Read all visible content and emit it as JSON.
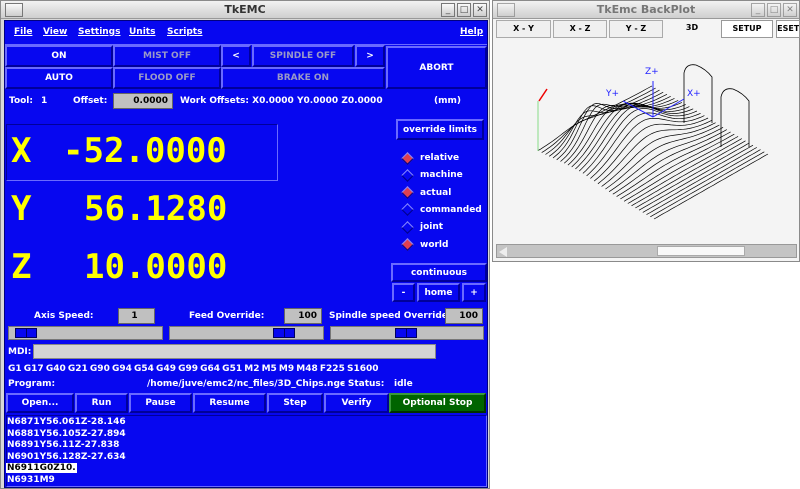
{
  "main_window": {
    "title": "TkEMC",
    "menu": [
      "File",
      "View",
      "Settings",
      "Units",
      "Scripts"
    ],
    "help": "Help",
    "buttons": {
      "on": "ON",
      "mist": "MIST OFF",
      "spindle_dec": "<",
      "spindle": "SPINDLE OFF",
      "spindle_inc": ">",
      "abort": "ABORT",
      "auto": "AUTO",
      "flood": "FLOOD OFF",
      "brake": "BRAKE ON"
    },
    "tool_label": "Tool:",
    "tool_value": "1",
    "offset_label": "Offset:",
    "offset_value": "0.0000",
    "work_offsets": "Work Offsets:  X0.0000 Y0.0000 Z0.0000",
    "units": "(mm)",
    "dro": [
      {
        "axis": "X",
        "value": "-52.0000"
      },
      {
        "axis": "Y",
        "value": "56.1280"
      },
      {
        "axis": "Z",
        "value": "10.0000"
      }
    ],
    "override_limits": "override limits",
    "coord_modes": [
      {
        "label": "relative",
        "checked": true
      },
      {
        "label": "machine",
        "checked": false
      },
      {
        "label": "actual",
        "checked": true
      },
      {
        "label": "commanded",
        "checked": false
      },
      {
        "label": "joint",
        "checked": false
      },
      {
        "label": "world",
        "checked": true
      }
    ],
    "jog_mode": "continuous",
    "jog_minus": "-",
    "home": "home",
    "jog_plus": "+",
    "axis_speed_label": "Axis Speed:",
    "axis_speed": "1",
    "feed_override_label": "Feed Override:",
    "feed_override": "100",
    "spindle_override_label": "Spindle speed Override:",
    "spindle_override": "100",
    "sliders": {
      "axis_speed": 0.05,
      "feed_override": 0.8,
      "spindle_override": 0.5
    },
    "mdi_label": "MDI:",
    "mdi_value": "",
    "active_codes": "G1  G17  G40  G21  G90  G94  G54  G49  G99  G64  G51  M2  M5  M9  M48  F225  S1600",
    "program_label": "Program:",
    "program_path": "/home/juve/emc2/nc_files/3D_Chips.ngc",
    "status_label": "-   Status:",
    "status": "idle",
    "program_buttons": [
      "Open...",
      "Run",
      "Pause",
      "Resume",
      "Step",
      "Verify",
      "Optional Stop"
    ],
    "code_lines": [
      "N6871Y56.061Z-28.146",
      "N6881Y56.105Z-27.894",
      "N6891Y56.11Z-27.838",
      "N6901Y56.128Z-27.634",
      "N6911G0Z10.",
      "N6931M9"
    ],
    "current_line_index": 4
  },
  "backplot": {
    "title": "TkEmc BackPlot",
    "tabs": [
      "X - Y",
      "X - Z",
      "Y - Z",
      "3D",
      "SETUP",
      "RESET"
    ],
    "active_tab": "3D",
    "axis_labels": {
      "x": "X+",
      "y": "Y+",
      "z": "Z+"
    }
  },
  "colors": {
    "panel_blue": "#0707f0",
    "dro_yellow": "#ffff00",
    "optional_stop_green": "#006400",
    "radio_on": "#e04050"
  }
}
